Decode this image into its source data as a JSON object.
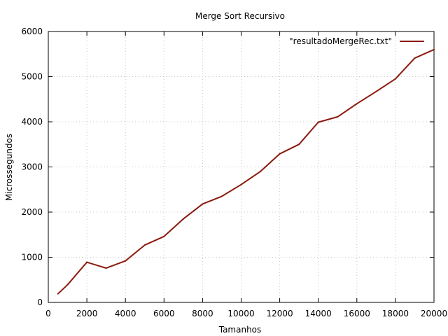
{
  "chart_data": {
    "type": "line",
    "title": "Merge Sort Recursivo",
    "xlabel": "Tamanhos",
    "ylabel": "Microssegundos",
    "xlim": [
      0,
      20000
    ],
    "ylim": [
      0,
      6000
    ],
    "xticks": [
      0,
      2000,
      4000,
      6000,
      8000,
      10000,
      12000,
      14000,
      16000,
      18000,
      20000
    ],
    "yticks": [
      0,
      1000,
      2000,
      3000,
      4000,
      5000,
      6000
    ],
    "xtick_labels": [
      "0",
      "2000",
      "4000",
      "6000",
      "8000",
      "10000",
      "12000",
      "14000",
      "16000",
      "18000",
      "20000"
    ],
    "ytick_labels": [
      "0",
      "1000",
      "2000",
      "3000",
      "4000",
      "5000",
      "6000"
    ],
    "grid": true,
    "legend_position": "top-right",
    "series": [
      {
        "name": "\"resultadoMergeRec.txt\"",
        "color": "#8b1a0e",
        "x": [
          500,
          1000,
          2000,
          3000,
          4000,
          5000,
          6000,
          7000,
          8000,
          9000,
          10000,
          11000,
          12000,
          13000,
          14000,
          15000,
          16000,
          17000,
          18000,
          19000,
          20000
        ],
        "y": [
          190,
          390,
          890,
          760,
          920,
          1270,
          1460,
          1850,
          2180,
          2350,
          2610,
          2900,
          3290,
          3500,
          3990,
          4110,
          4400,
          4670,
          4950,
          5410,
          5600
        ]
      }
    ]
  }
}
